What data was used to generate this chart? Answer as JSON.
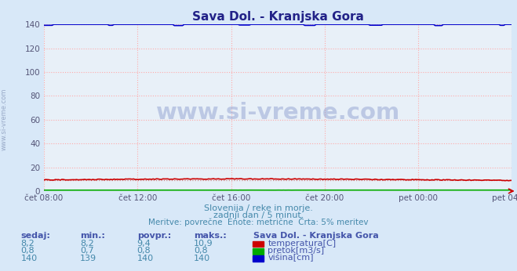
{
  "title": "Sava Dol. - Kranjska Gora",
  "background_color": "#d8e8f8",
  "plot_bg_color": "#e8f0f8",
  "grid_color": "#ffaaaa",
  "ylim": [
    0,
    140
  ],
  "yticks": [
    0,
    20,
    40,
    60,
    80,
    100,
    120,
    140
  ],
  "xtick_labels": [
    "čet 08:00",
    "čet 12:00",
    "čet 16:00",
    "čet 20:00",
    "pet 00:00",
    "pet 04:00"
  ],
  "n_points": 288,
  "temp_avg": 9.4,
  "temp_color": "#cc0000",
  "pretok_color": "#00aa00",
  "visina_color": "#0000cc",
  "dotted_color": "#cc8888",
  "watermark_text": "www.si-vreme.com",
  "watermark_color": "#aabbcc",
  "subtitle1": "Slovenija / reke in morje.",
  "subtitle2": "zadnji dan / 5 minut.",
  "subtitle3": "Meritve: povrečne  Enote: metrične  Črta: 5% meritev",
  "subtitle_color": "#4488aa",
  "table_header": [
    "sedaj:",
    "min.:",
    "povpr.:",
    "maks.:"
  ],
  "table_data": [
    [
      "8,2",
      "8,2",
      "9,4",
      "10,9"
    ],
    [
      "0,8",
      "0,7",
      "0,8",
      "0,8"
    ],
    [
      "140",
      "139",
      "140",
      "140"
    ]
  ],
  "legend_labels": [
    "temperatura[C]",
    "pretok[m3/s]",
    "višina[cm]"
  ],
  "legend_colors": [
    "#cc0000",
    "#00aa00",
    "#0000cc"
  ],
  "table_color": "#4455aa",
  "title_color": "#222288",
  "ylabel_color": "#8899bb"
}
